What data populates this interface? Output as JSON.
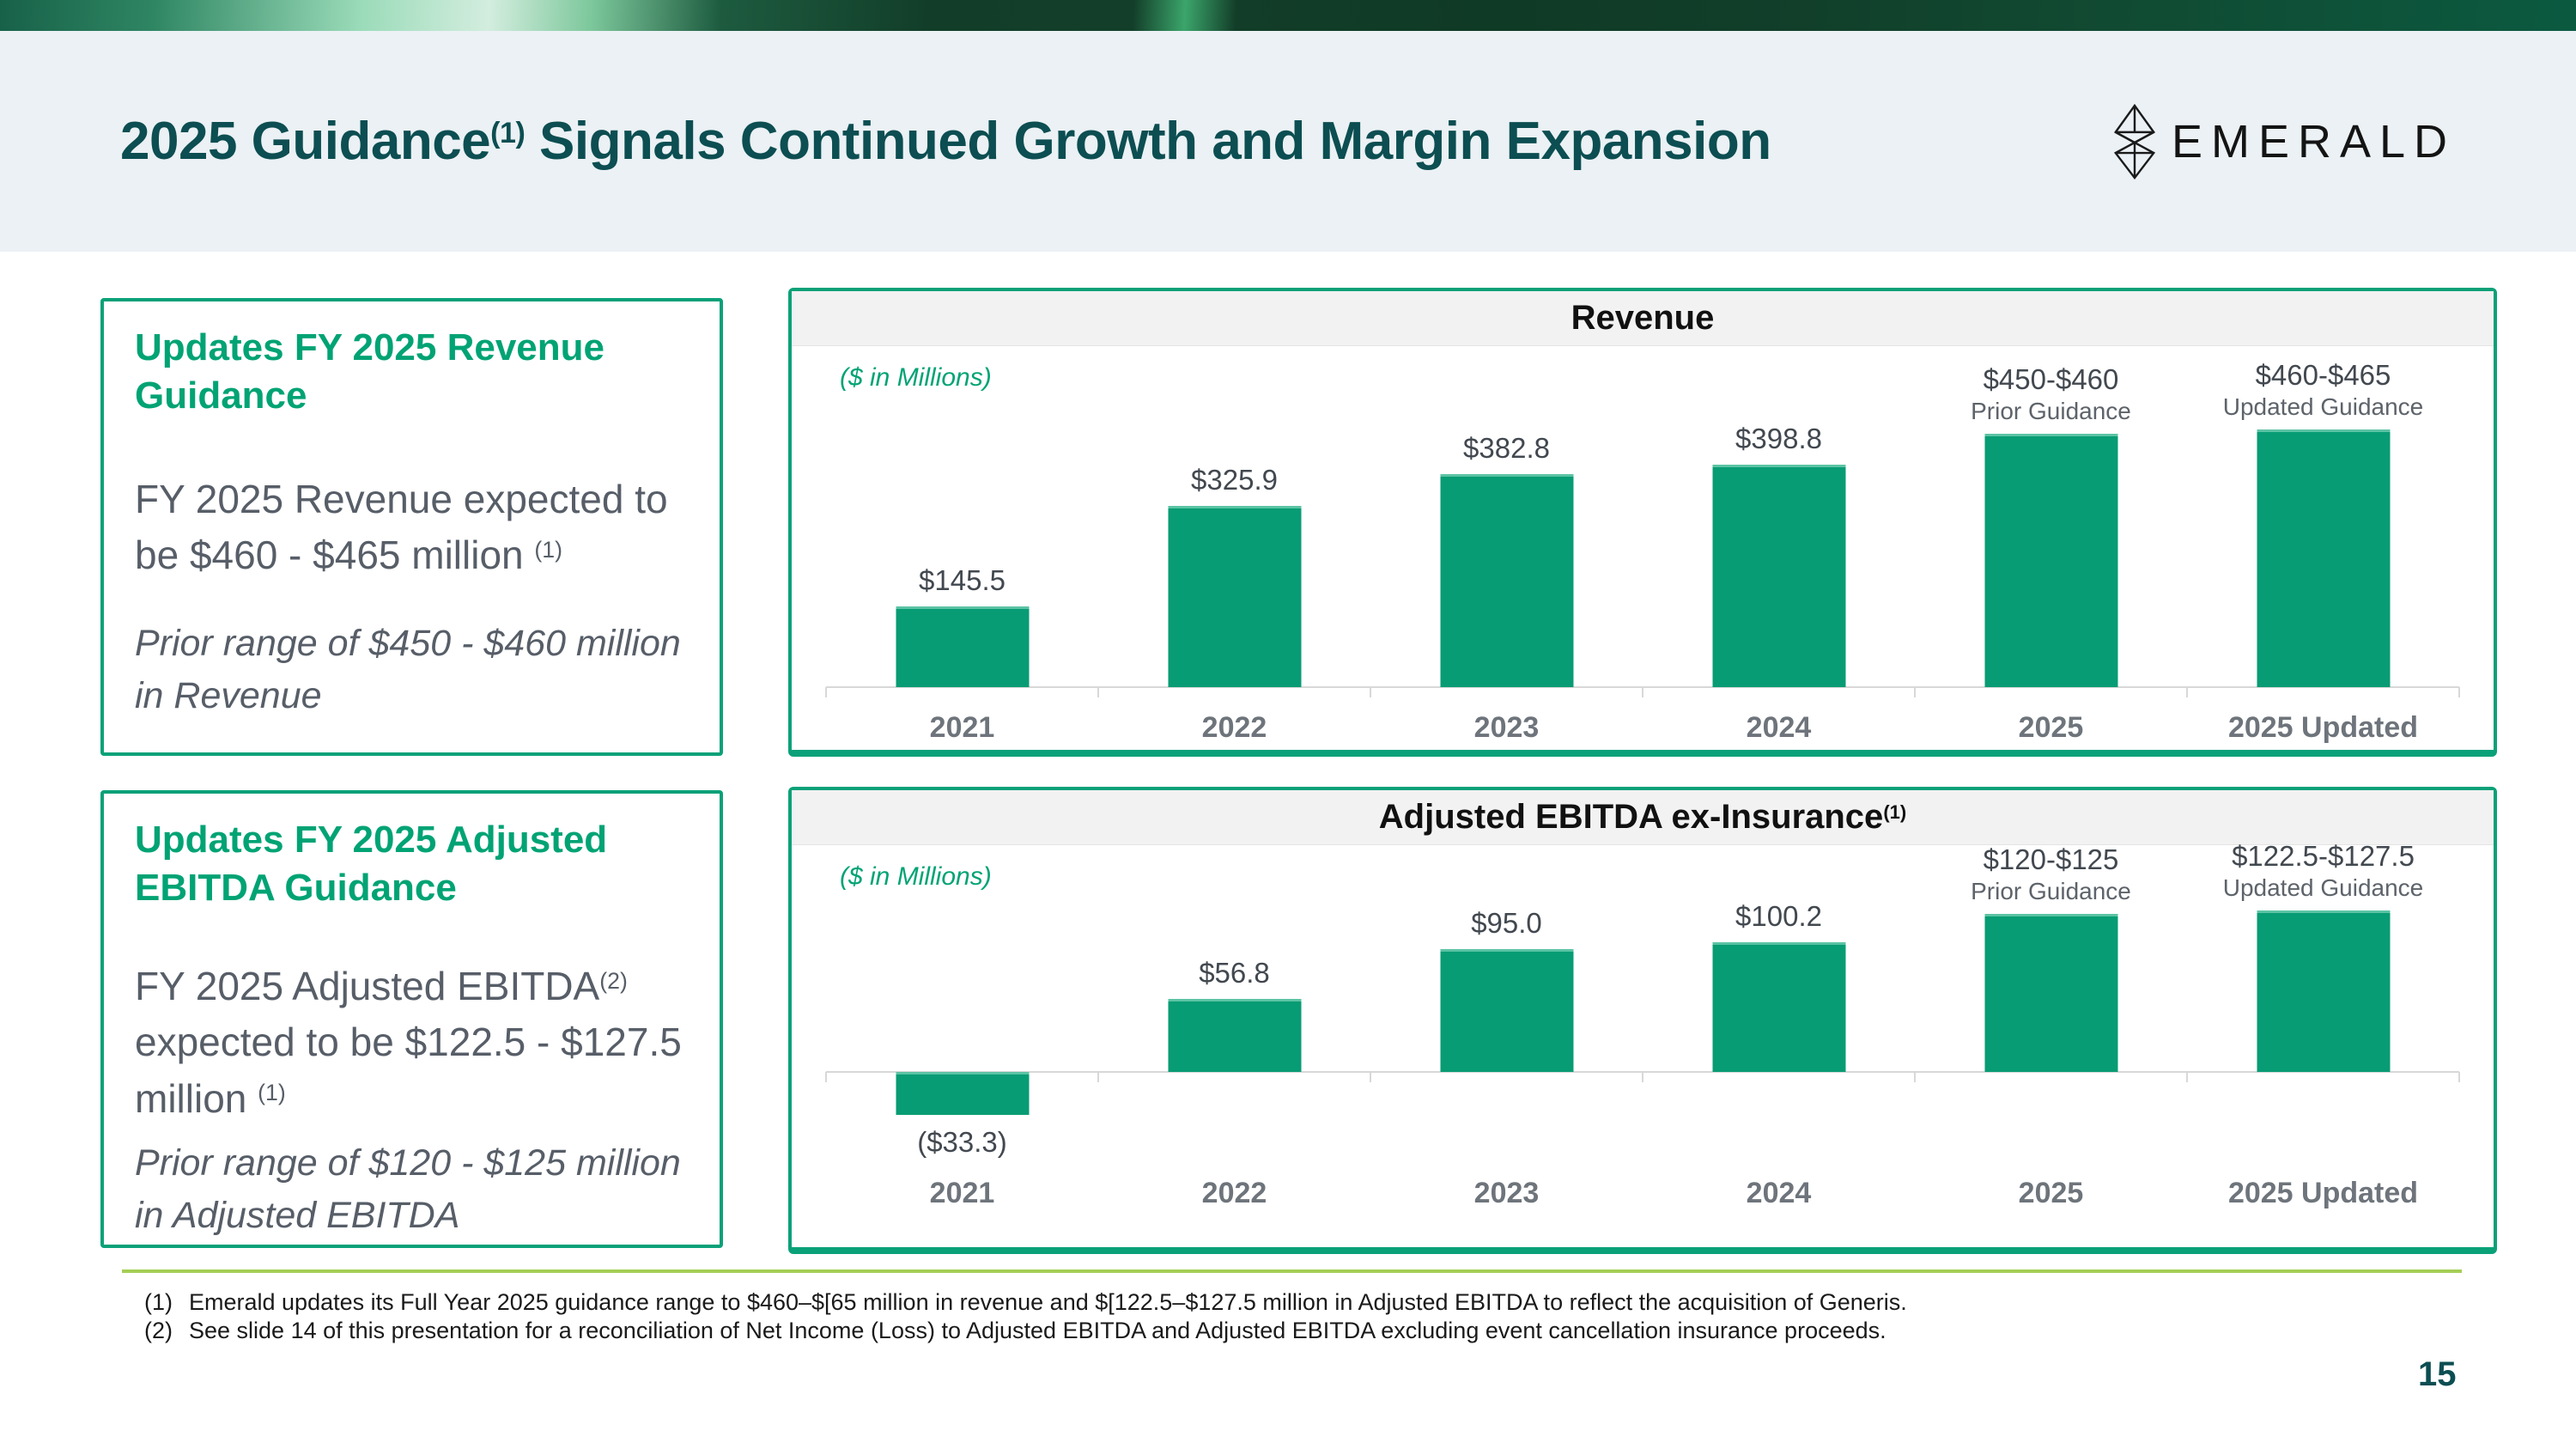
{
  "header": {
    "title_main": "2025 Guidance",
    "title_sup": "(1)",
    "title_rest": " Signals Continued Growth and Margin Expansion",
    "logo_text": "EMERALD",
    "page_number": "15"
  },
  "left_boxes": [
    {
      "heading": "Updates FY 2025 Revenue Guidance",
      "body_main": "FY 2025 Revenue expected to be $460 - $465 million ",
      "body_sup": "(1)",
      "prior_note": "Prior range of $450 - $460 million in Revenue"
    },
    {
      "heading": "Updates FY 2025 Adjusted EBITDA Guidance",
      "body_pre": "FY 2025 Adjusted EBITDA",
      "body_sup_a": "(2)",
      "body_mid": " expected to be $122.5 - $127.5 million ",
      "body_sup_b": "(1)",
      "prior_note": "Prior range of $120 - $125 million in Adjusted EBITDA"
    }
  ],
  "chart_data": [
    {
      "type": "bar",
      "title": "Revenue",
      "title_sup": "",
      "units_label": "($ in Millions)",
      "categories": [
        "2021",
        "2022",
        "2023",
        "2024",
        "2025",
        "2025 Updated"
      ],
      "values": [
        145.5,
        325.9,
        382.8,
        398.8,
        455,
        462.5
      ],
      "bar_labels": [
        "$145.5",
        "$325.9",
        "$382.8",
        "$398.8",
        "$450-$460",
        "$460-$465"
      ],
      "bar_sublabels": [
        null,
        null,
        null,
        null,
        "Prior Guidance",
        "Updated Guidance"
      ],
      "xlabel": "",
      "ylabel": "",
      "ylim": [
        0,
        500
      ],
      "grid": false,
      "legend": "none",
      "bar_color": "#089c74"
    },
    {
      "type": "bar",
      "title": "Adjusted EBITDA ex-Insurance",
      "title_sup": "(1)",
      "units_label": "($ in Millions)",
      "categories": [
        "2021",
        "2022",
        "2023",
        "2024",
        "2025",
        "2025 Updated"
      ],
      "values": [
        -33.3,
        56.8,
        95.0,
        100.2,
        122.5,
        125.0
      ],
      "bar_labels": [
        "($33.3)",
        "$56.8",
        "$95.0",
        "$100.2",
        "$120-$125",
        "$122.5-$127.5"
      ],
      "bar_sublabels": [
        null,
        null,
        null,
        null,
        "Prior Guidance",
        "Updated Guidance"
      ],
      "xlabel": "",
      "ylabel": "",
      "ylim": [
        -50,
        150
      ],
      "grid": false,
      "legend": "none",
      "bar_color": "#089c74"
    }
  ],
  "footnotes": [
    {
      "num": "(1)",
      "text": "Emerald updates its Full Year 2025 guidance range to $460–$[65 million in revenue and $[122.5–$127.5 million in Adjusted EBITDA to reflect the acquisition of Generis."
    },
    {
      "num": "(2)",
      "text": "See slide 14 of this presentation for a reconciliation of Net Income (Loss) to Adjusted EBITDA and Adjusted EBITDA excluding event cancellation insurance proceeds."
    }
  ],
  "colors": {
    "accent_green": "#0aa178",
    "bar_green": "#089c74",
    "heading_green": "#00a374",
    "dark_teal": "#0c4e52",
    "divider_lime": "#a4ce55",
    "header_bg": "#ebf1f4"
  }
}
